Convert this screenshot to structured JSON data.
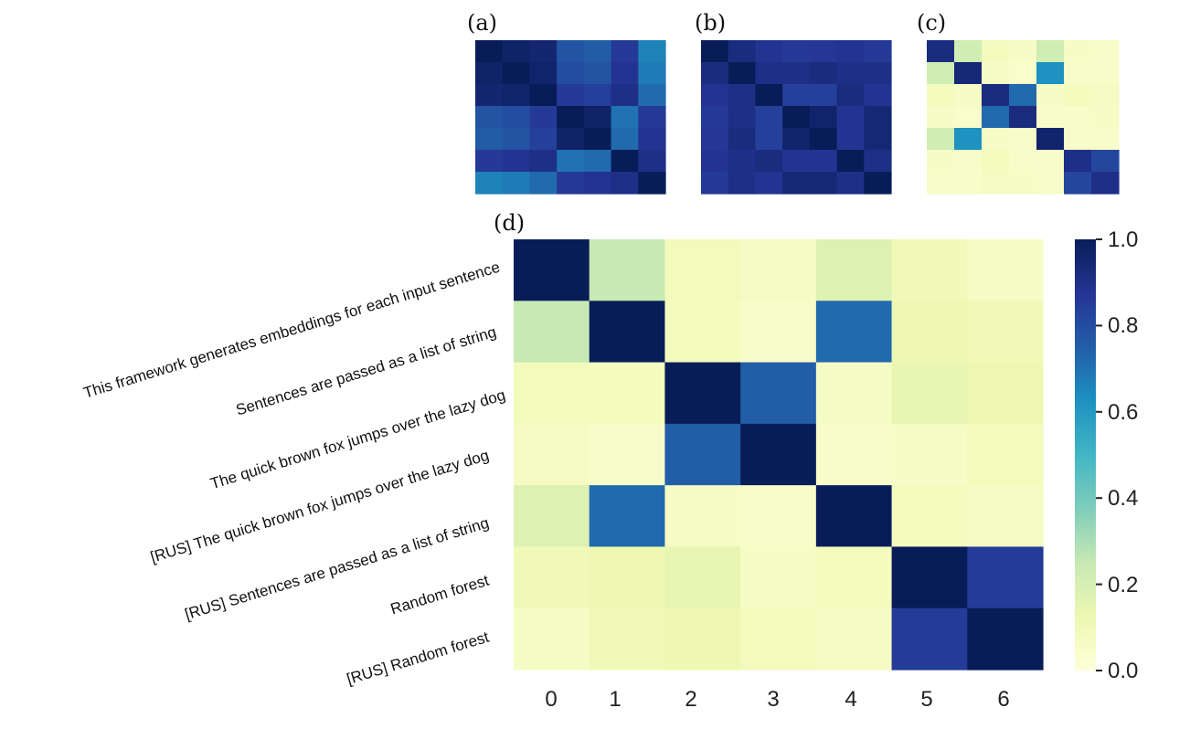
{
  "chart_data": [
    {
      "panel": "(a)",
      "type": "heatmap",
      "colormap": "YlGnBu",
      "vmin": 0.0,
      "vmax": 1.0,
      "matrix": [
        [
          1.0,
          0.97,
          0.95,
          0.78,
          0.76,
          0.86,
          0.66
        ],
        [
          0.97,
          1.0,
          0.96,
          0.8,
          0.78,
          0.88,
          0.68
        ],
        [
          0.95,
          0.96,
          1.0,
          0.86,
          0.84,
          0.9,
          0.72
        ],
        [
          0.78,
          0.8,
          0.86,
          1.0,
          0.97,
          0.7,
          0.86
        ],
        [
          0.76,
          0.78,
          0.84,
          0.97,
          1.0,
          0.72,
          0.88
        ],
        [
          0.86,
          0.88,
          0.9,
          0.7,
          0.72,
          1.0,
          0.9
        ],
        [
          0.66,
          0.68,
          0.72,
          0.86,
          0.88,
          0.9,
          1.0
        ]
      ]
    },
    {
      "panel": "(b)",
      "type": "heatmap",
      "colormap": "YlGnBu",
      "vmin": 0.0,
      "vmax": 1.0,
      "matrix": [
        [
          1.0,
          0.92,
          0.88,
          0.86,
          0.87,
          0.88,
          0.86
        ],
        [
          0.92,
          1.0,
          0.9,
          0.9,
          0.92,
          0.9,
          0.9
        ],
        [
          0.88,
          0.9,
          1.0,
          0.84,
          0.84,
          0.92,
          0.88
        ],
        [
          0.86,
          0.9,
          0.84,
          1.0,
          0.96,
          0.88,
          0.94
        ],
        [
          0.87,
          0.92,
          0.84,
          0.96,
          1.0,
          0.88,
          0.94
        ],
        [
          0.88,
          0.9,
          0.92,
          0.88,
          0.88,
          1.0,
          0.9
        ],
        [
          0.86,
          0.9,
          0.88,
          0.94,
          0.94,
          0.9,
          1.0
        ]
      ]
    },
    {
      "panel": "(c)",
      "type": "heatmap",
      "colormap": "YlGnBu",
      "vmin": 0.0,
      "vmax": 1.0,
      "matrix": [
        [
          0.92,
          0.22,
          0.08,
          0.06,
          0.22,
          0.06,
          0.05
        ],
        [
          0.22,
          0.94,
          0.06,
          0.04,
          0.62,
          0.05,
          0.05
        ],
        [
          0.08,
          0.06,
          0.92,
          0.72,
          0.06,
          0.08,
          0.07
        ],
        [
          0.06,
          0.04,
          0.72,
          0.92,
          0.05,
          0.05,
          0.06
        ],
        [
          0.22,
          0.62,
          0.06,
          0.05,
          0.96,
          0.05,
          0.05
        ],
        [
          0.06,
          0.05,
          0.08,
          0.05,
          0.05,
          0.9,
          0.82
        ],
        [
          0.05,
          0.05,
          0.07,
          0.06,
          0.05,
          0.82,
          0.9
        ]
      ]
    },
    {
      "panel": "(d)",
      "type": "heatmap",
      "colormap": "YlGnBu",
      "vmin": 0.0,
      "vmax": 1.0,
      "row_labels": [
        "This framework generates embeddings for each input sentence",
        "Sentences are passed as a list of string",
        "The quick brown fox jumps over the lazy dog",
        "[RUS] The quick brown fox jumps over the lazy dog",
        "[RUS] Sentences are passed as a list of string",
        "Random forest",
        "[RUS] Random forest"
      ],
      "col_labels": [
        "0",
        "1",
        "2",
        "3",
        "4",
        "5",
        "6"
      ],
      "colorbar_ticks": [
        "0.0",
        "0.2",
        "0.4",
        "0.6",
        "0.8",
        "1.0"
      ],
      "matrix": [
        [
          1.0,
          0.25,
          0.09,
          0.07,
          0.18,
          0.1,
          0.06
        ],
        [
          0.25,
          1.0,
          0.08,
          0.05,
          0.72,
          0.12,
          0.1
        ],
        [
          0.09,
          0.08,
          1.0,
          0.75,
          0.06,
          0.14,
          0.12
        ],
        [
          0.07,
          0.05,
          0.75,
          1.0,
          0.05,
          0.06,
          0.09
        ],
        [
          0.18,
          0.72,
          0.06,
          0.05,
          1.0,
          0.08,
          0.07
        ],
        [
          0.1,
          0.12,
          0.14,
          0.06,
          0.08,
          1.0,
          0.85
        ],
        [
          0.06,
          0.1,
          0.12,
          0.09,
          0.07,
          0.85,
          1.0
        ]
      ]
    }
  ]
}
